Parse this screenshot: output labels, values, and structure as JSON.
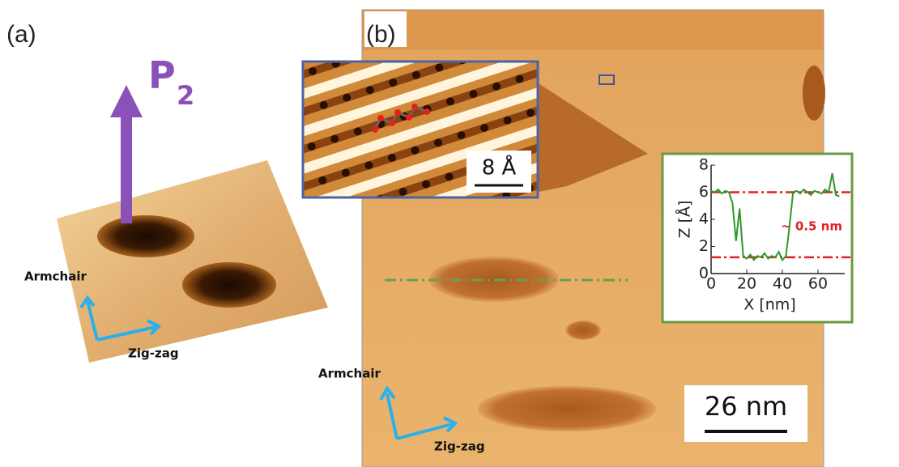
{
  "panel_a": {
    "label": "(a)",
    "arrow_label": "P",
    "arrow_subscript": "2",
    "axis_up": "Armchair",
    "axis_right": "Zig-zag"
  },
  "panel_b": {
    "label": "(b)",
    "inset_scale": "8 Å",
    "scale_bar": "26 nm",
    "axis_up": "Armchair",
    "axis_right": "Zig-zag",
    "profile": {
      "type": "line",
      "xlabel": "X [nm]",
      "ylabel": "Z [Å]",
      "annotation": "~ 0.5 nm",
      "xlim": [
        0,
        75
      ],
      "ylim": [
        0,
        8
      ],
      "xticks": [
        0,
        20,
        40,
        60
      ],
      "yticks": [
        0,
        2,
        4,
        6,
        8
      ],
      "reference_lines": [
        {
          "value": 6,
          "color": "#e02020"
        },
        {
          "value": 1.2,
          "color": "#e02020"
        }
      ],
      "x": [
        0,
        2,
        4,
        6,
        8,
        10,
        12,
        14,
        16,
        18,
        20,
        22,
        24,
        26,
        28,
        30,
        32,
        34,
        36,
        38,
        40,
        42,
        44,
        46,
        48,
        50,
        52,
        54,
        56,
        58,
        60,
        62,
        64,
        66,
        68,
        70,
        72
      ],
      "series": [
        {
          "color": "#2a9a2a",
          "values": [
            6.1,
            6.0,
            6.2,
            5.9,
            6.1,
            6.0,
            5.2,
            2.4,
            4.8,
            1.3,
            1.1,
            1.4,
            1.0,
            1.3,
            1.2,
            1.5,
            1.1,
            1.3,
            1.2,
            1.6,
            1.0,
            1.3,
            3.5,
            6.0,
            6.1,
            5.9,
            6.2,
            6.0,
            5.8,
            6.1,
            6.0,
            5.9,
            6.2,
            6.0,
            7.4,
            5.8,
            5.7
          ]
        }
      ]
    }
  }
}
